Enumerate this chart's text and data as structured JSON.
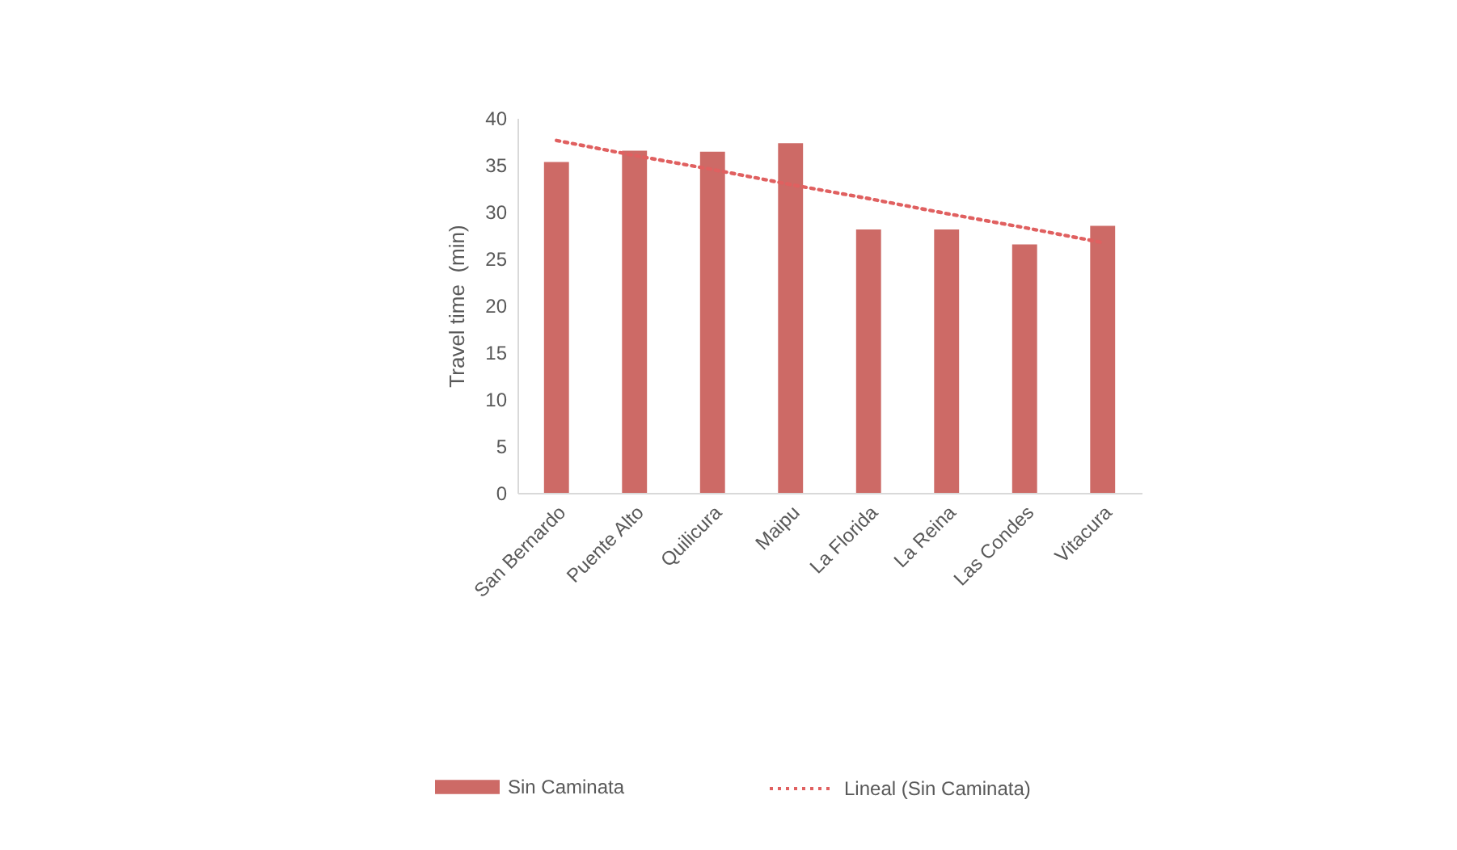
{
  "chart_data": {
    "type": "bar",
    "ylabel": "Travel time  (min)",
    "categories": [
      "San Bernardo",
      "Puente Alto",
      "Quilicura",
      "Maipu",
      "La Florida",
      "La Reina",
      "Las Condes",
      "Vitacura"
    ],
    "series": [
      {
        "name": "Sin Caminata",
        "color": "#cd6a66",
        "values": [
          35.3,
          36.5,
          36.4,
          37.3,
          28.1,
          28.1,
          26.5,
          28.5
        ]
      },
      {
        "name": "Lineal (Sin Caminata)",
        "type": "line",
        "color": "#e06060",
        "values": [
          37.6,
          36.0,
          34.5,
          32.9,
          31.4,
          29.8,
          28.3,
          26.7
        ]
      }
    ],
    "ylim": [
      0,
      40
    ],
    "yticks": [
      0,
      5,
      10,
      15,
      20,
      25,
      30,
      35,
      40
    ],
    "legend": "bottom",
    "line_style": "dotted"
  }
}
